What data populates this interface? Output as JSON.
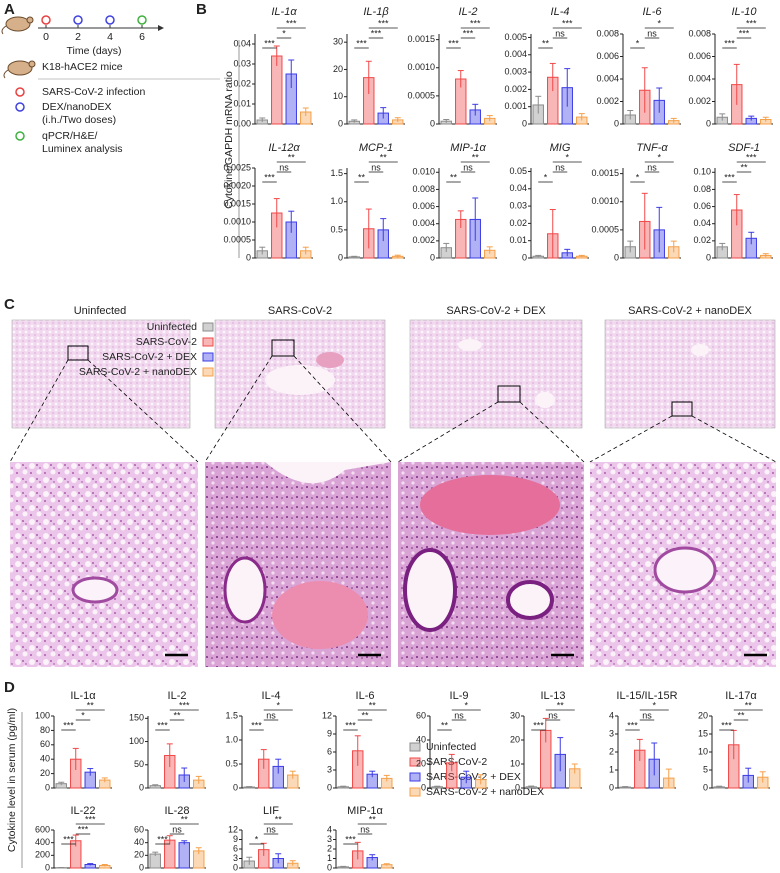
{
  "panel_labels": [
    "A",
    "B",
    "C",
    "D"
  ],
  "panel_a": {
    "timepoints": [
      0,
      2,
      4,
      6
    ],
    "timepoint_colors": [
      "#e84040",
      "#4040e0",
      "#4040e0",
      "#40b040"
    ],
    "xlabel": "Time (days)",
    "mouse_label": "K18-hACE2 mice",
    "legend": [
      "SARS-CoV-2 infection",
      "DEX/nanoDEX",
      "(i.h./Two doses)",
      "qPCR/H&E/",
      "Luminex analysis"
    ],
    "legend_colors": [
      "#e84040",
      "#4040e0",
      null,
      "#40b040",
      null
    ]
  },
  "panel_b_ylabel": "Cytokine/GAPDH mRNA ratio",
  "panel_c_titles": [
    "Uninfected",
    "SARS-CoV-2",
    "SARS-CoV-2 + DEX",
    "SARS-CoV-2 + nanoDEX"
  ],
  "panel_d_ylabel": "Cytokine level in serum (pg/ml)",
  "legend": {
    "labels": [
      "Uninfected",
      "SARS-CoV-2",
      "SARS-CoV-2 + DEX",
      "SARS-CoV-2 + nanoDEX"
    ],
    "colors": [
      "#8c8c8c",
      "#f04848",
      "#3c3ce6",
      "#f5a04a"
    ]
  },
  "chart_data": [
    {
      "type": "bar",
      "title": "IL-1α",
      "italic": true,
      "values": [
        0.002,
        0.034,
        0.025,
        0.006
      ],
      "errors": [
        0.001,
        0.005,
        0.007,
        0.002
      ],
      "ylim": [
        0,
        0.045
      ],
      "yticks": [
        {
          "value": 0,
          "label": "0.00"
        },
        0.01,
        0.02,
        0.03,
        0.04
      ],
      "annotations": [
        "***",
        "*",
        "***"
      ]
    },
    {
      "type": "bar",
      "title": "IL-1β",
      "italic": true,
      "values": [
        1,
        17,
        4,
        1.5
      ],
      "errors": [
        0.5,
        6,
        2,
        0.8
      ],
      "ylim": [
        0,
        33
      ],
      "yticks": [
        0,
        10,
        20,
        30
      ],
      "annotations": [
        "***",
        "***",
        "***"
      ]
    },
    {
      "type": "bar",
      "title": "IL-2",
      "italic": true,
      "values": [
        5e-05,
        0.0008,
        0.00025,
        0.0001
      ],
      "errors": [
        3e-05,
        0.00015,
        0.0001,
        5e-05
      ],
      "ylim": [
        0,
        0.0016
      ],
      "yticks": [
        0,
        0.0005,
        {
          "value": 0.001,
          "label": "0.0010"
        },
        0.0015
      ],
      "annotations": [
        "***",
        "***",
        "***"
      ]
    },
    {
      "type": "bar",
      "title": "IL-4",
      "italic": true,
      "values": [
        0.0011,
        0.0027,
        0.0021,
        0.0004
      ],
      "errors": [
        0.0005,
        0.0008,
        0.0011,
        0.0002
      ],
      "ylim": [
        0,
        0.0052
      ],
      "yticks": [
        0,
        0.001,
        0.002,
        0.003,
        0.004,
        0.005
      ],
      "annotations": [
        "**",
        "ns",
        "***"
      ]
    },
    {
      "type": "bar",
      "title": "IL-6",
      "italic": true,
      "values": [
        0.0008,
        0.003,
        0.0021,
        0.0003
      ],
      "errors": [
        0.0004,
        0.002,
        0.0011,
        0.0002
      ],
      "ylim": [
        0,
        0.008
      ],
      "yticks": [
        0,
        0.002,
        0.004,
        0.006,
        0.008
      ],
      "annotations": [
        "*",
        "ns",
        "*"
      ]
    },
    {
      "type": "bar",
      "title": "IL-10",
      "italic": true,
      "values": [
        0.0006,
        0.0035,
        0.0005,
        0.0004
      ],
      "errors": [
        0.0003,
        0.0018,
        0.0002,
        0.0002
      ],
      "ylim": [
        0,
        0.008
      ],
      "yticks": [
        0,
        0.002,
        0.004,
        0.006,
        0.008
      ],
      "annotations": [
        "***",
        "***",
        "***"
      ]
    },
    {
      "type": "bar",
      "title": "IL-12α",
      "italic": true,
      "values": [
        0.0002,
        0.00125,
        0.001,
        0.0002
      ],
      "errors": [
        0.0001,
        0.0004,
        0.0003,
        0.0001
      ],
      "ylim": [
        0,
        0.0025
      ],
      "yticks": [
        0,
        0.0005,
        {
          "value": 0.001,
          "label": "0.0010"
        },
        0.0015,
        {
          "value": 0.002,
          "label": "0.0020"
        },
        0.0025
      ],
      "annotations": [
        "***",
        "ns",
        "**"
      ]
    },
    {
      "type": "bar",
      "title": "MCP-1",
      "italic": true,
      "values": [
        0.02,
        0.52,
        0.5,
        0.03
      ],
      "errors": [
        0.01,
        0.35,
        0.2,
        0.02
      ],
      "ylim": [
        0,
        1.6
      ],
      "yticks": [
        0,
        0.5,
        {
          "value": 1,
          "label": "1.0"
        },
        1.5
      ],
      "annotations": [
        "**",
        "ns",
        "**"
      ]
    },
    {
      "type": "bar",
      "title": "MIP-1α",
      "italic": true,
      "values": [
        0.0012,
        0.0045,
        0.0045,
        0.0009
      ],
      "errors": [
        0.0005,
        0.001,
        0.0025,
        0.0004
      ],
      "ylim": [
        0,
        0.0105
      ],
      "yticks": [
        0,
        0.002,
        0.004,
        0.006,
        0.008,
        {
          "value": 0.01,
          "label": "0.010"
        }
      ],
      "annotations": [
        "**",
        "ns",
        "**"
      ]
    },
    {
      "type": "bar",
      "title": "MIG",
      "italic": true,
      "values": [
        0.001,
        0.014,
        0.003,
        0.001
      ],
      "errors": [
        0.0005,
        0.014,
        0.002,
        0.0005
      ],
      "ylim": [
        0,
        0.052
      ],
      "yticks": [
        0,
        0.01,
        0.02,
        0.03,
        0.04,
        0.05
      ],
      "annotations": [
        "*",
        "ns",
        "*"
      ]
    },
    {
      "type": "bar",
      "title": "TNF-α",
      "italic": true,
      "values": [
        0.0002,
        0.00065,
        0.0005,
        0.0002
      ],
      "errors": [
        0.0001,
        0.0005,
        0.0004,
        0.0001
      ],
      "ylim": [
        0,
        0.0016
      ],
      "yticks": [
        0,
        0.0005,
        {
          "value": 0.001,
          "label": "0.0010"
        },
        0.0015
      ],
      "annotations": [
        "*",
        "ns",
        "*"
      ]
    },
    {
      "type": "bar",
      "title": "SDF-1",
      "italic": true,
      "values": [
        0.013,
        0.056,
        0.023,
        0.003
      ],
      "errors": [
        0.004,
        0.018,
        0.007,
        0.002
      ],
      "ylim": [
        0,
        0.105
      ],
      "yticks": [
        0,
        0.02,
        0.04,
        0.06,
        0.08,
        {
          "value": 0.1,
          "label": "0.10"
        }
      ],
      "annotations": [
        "***",
        "**",
        "***"
      ]
    },
    {
      "type": "bar",
      "title": "IL-1α",
      "italic": false,
      "values": [
        6,
        40,
        22,
        11
      ],
      "errors": [
        2,
        15,
        5,
        3
      ],
      "ylim": [
        0,
        100
      ],
      "yticks": [
        0,
        20,
        40,
        60,
        80,
        100
      ],
      "annotations": [
        "***",
        "*",
        "**"
      ]
    },
    {
      "type": "bar",
      "title": "IL-2",
      "italic": false,
      "values": [
        5,
        70,
        28,
        17
      ],
      "errors": [
        2,
        25,
        15,
        8
      ],
      "ylim": [
        0,
        155
      ],
      "yticks": [
        0,
        50,
        100,
        150
      ],
      "annotations": [
        "***",
        "**",
        "***"
      ]
    },
    {
      "type": "bar",
      "title": "IL-4",
      "italic": false,
      "values": [
        0.02,
        0.6,
        0.45,
        0.27
      ],
      "errors": [
        0.01,
        0.2,
        0.15,
        0.08
      ],
      "ylim": [
        0,
        1.5
      ],
      "yticks": [
        0,
        0.5,
        {
          "value": 1,
          "label": "1.0"
        },
        1.5
      ],
      "annotations": [
        "***",
        "ns",
        "*"
      ]
    },
    {
      "type": "bar",
      "title": "IL-6",
      "italic": false,
      "values": [
        0.2,
        6.2,
        2.3,
        1.6
      ],
      "errors": [
        0.1,
        2.5,
        0.5,
        0.5
      ],
      "ylim": [
        0,
        12
      ],
      "yticks": [
        0,
        3,
        6,
        9,
        12
      ],
      "annotations": [
        "***",
        "**",
        "**"
      ]
    },
    {
      "type": "bar",
      "title": "IL-9",
      "italic": false,
      "values": [
        1,
        21,
        9,
        7
      ],
      "errors": [
        0.5,
        7,
        5,
        4
      ],
      "ylim": [
        0,
        60
      ],
      "yticks": [
        0,
        20,
        40,
        60
      ],
      "annotations": [
        "**",
        "ns",
        "*"
      ]
    },
    {
      "type": "bar",
      "title": "IL-13",
      "italic": false,
      "values": [
        0.5,
        24,
        14,
        8
      ],
      "errors": [
        0.3,
        5,
        7,
        2
      ],
      "ylim": [
        0,
        30
      ],
      "yticks": [
        0,
        10,
        20,
        30
      ],
      "annotations": [
        "***",
        "ns",
        "**"
      ]
    },
    {
      "type": "bar",
      "title": "IL-15/IL-15R",
      "italic": false,
      "values": [
        0.05,
        2.1,
        1.6,
        0.55
      ],
      "errors": [
        0.03,
        0.6,
        0.9,
        0.5
      ],
      "ylim": [
        0,
        4
      ],
      "yticks": [
        0,
        1,
        2,
        3,
        4
      ],
      "annotations": [
        "***",
        "ns",
        "*"
      ]
    },
    {
      "type": "bar",
      "title": "IL-17α",
      "italic": false,
      "values": [
        0.3,
        12,
        3.5,
        3
      ],
      "errors": [
        0.2,
        4,
        2,
        1.5
      ],
      "ylim": [
        0,
        20
      ],
      "yticks": [
        0,
        5,
        10,
        15,
        20
      ],
      "annotations": [
        "***",
        "**",
        "**"
      ]
    },
    {
      "type": "bar",
      "title": "IL-22",
      "italic": false,
      "values": [
        5,
        430,
        55,
        40
      ],
      "errors": [
        3,
        90,
        15,
        15
      ],
      "ylim": [
        0,
        600
      ],
      "yticks": [
        0,
        200,
        400,
        600
      ],
      "annotations": [
        "***",
        "***",
        "***"
      ]
    },
    {
      "type": "bar",
      "title": "IL-28",
      "italic": false,
      "values": [
        22,
        44,
        40,
        27
      ],
      "errors": [
        3,
        7,
        3,
        5
      ],
      "ylim": [
        0,
        60
      ],
      "yticks": [
        0,
        20,
        40,
        60
      ],
      "annotations": [
        "***",
        "ns",
        "**"
      ]
    },
    {
      "type": "bar",
      "title": "LIF",
      "italic": false,
      "values": [
        2.2,
        5.8,
        3,
        1.5
      ],
      "errors": [
        1.2,
        2,
        1.5,
        0.8
      ],
      "ylim": [
        0,
        12
      ],
      "yticks": [
        0,
        3,
        6,
        9,
        12
      ],
      "annotations": [
        "*",
        "ns",
        "**"
      ]
    },
    {
      "type": "bar",
      "title": "MIP-1α",
      "italic": false,
      "values": [
        0.12,
        1.8,
        1.1,
        0.35
      ],
      "errors": [
        0.05,
        0.9,
        0.3,
        0.1
      ],
      "ylim": [
        0,
        4
      ],
      "yticks": [
        0,
        1,
        2,
        3,
        4
      ],
      "annotations": [
        "***",
        "ns",
        "**"
      ]
    }
  ]
}
